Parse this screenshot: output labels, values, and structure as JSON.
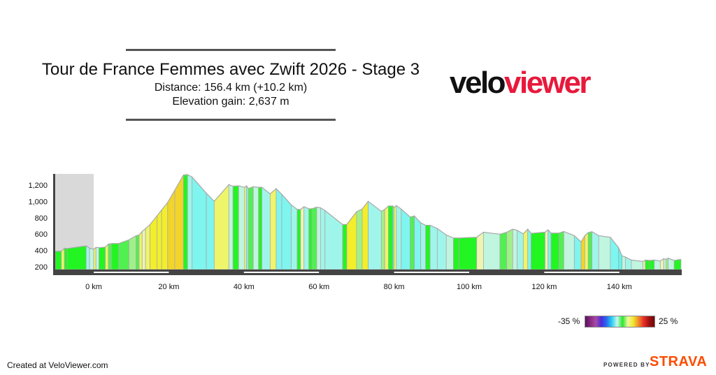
{
  "header": {
    "title": "Tour de France Femmes avec Zwift 2026 - Stage 3",
    "distance": "Distance: 156.4 km (+10.2 km)",
    "elevation_gain": "Elevation gain: 2,637 m"
  },
  "logo": {
    "part1": "velo",
    "part2": "viewer",
    "colors": {
      "velo": "#111111",
      "viewer": "#e8193c"
    }
  },
  "legend": {
    "min_label": "-35 %",
    "max_label": "25 %"
  },
  "footer": {
    "created": "Created at VeloViewer.com",
    "powered_by": "POWERED BY",
    "strava": "STRAVA",
    "strava_color": "#fc4c02"
  },
  "chart_data": {
    "type": "area",
    "title": "",
    "xlabel": "",
    "ylabel": "",
    "x_unit": "km",
    "xlim": [
      -10.2,
      156.4
    ],
    "ylim": [
      165,
      1340
    ],
    "neutral_zone": [
      -10.2,
      0
    ],
    "x_ticks": [
      0,
      20,
      40,
      60,
      80,
      100,
      120,
      140
    ],
    "x_tick_labels": [
      "0 km",
      "20 km",
      "40 km",
      "60 km",
      "80 km",
      "100 km",
      "120 km",
      "140 km"
    ],
    "y_ticks": [
      200,
      400,
      600,
      800,
      1000,
      1200
    ],
    "y_tick_labels": [
      "200",
      "400",
      "600",
      "800",
      "1,000",
      "1,200"
    ],
    "grid": false,
    "color_by": "gradient",
    "series": [
      {
        "x": [
          -10.2,
          -8.6,
          -7.8,
          -7,
          -2,
          -1.1,
          0,
          0.6,
          1.4,
          3.1,
          3.9,
          4.8,
          6.6,
          9.4,
          11.3,
          12.1,
          12.9,
          13.8,
          15,
          16.9,
          18.1,
          19.7,
          21.6,
          23.9,
          25,
          26.2,
          30,
          32.1,
          36,
          37.1,
          38.6,
          40.2,
          40.7,
          41.2,
          42.5,
          43.9,
          44.8,
          47,
          48.6,
          50.1,
          52.6,
          54.2,
          55.1,
          56,
          57.3,
          58.1,
          59.4,
          60.4,
          61.6,
          66.3,
          67.4,
          70,
          71.5,
          73.1,
          76.6,
          77.5,
          78.5,
          79.7,
          80,
          80.6,
          81.9,
          84.3,
          85.4,
          87.1,
          88.4,
          89.6,
          91.5,
          93.9,
          95.8,
          97.3,
          102,
          103.8,
          108.2,
          110,
          111.6,
          112.8,
          114.4,
          115.6,
          116.5,
          120.2,
          121,
          121.8,
          123.9,
          125.2,
          128,
          129.8,
          130.8,
          131.7,
          132.7,
          134.5,
          137.6,
          139.8,
          140.7,
          141.6,
          143.2,
          146.3,
          146.9,
          148.1,
          149.3,
          150.9,
          151.8,
          152.4,
          153,
          154.6,
          156.4
        ],
        "y": [
          390,
          390,
          427,
          424,
          456,
          427,
          413,
          438,
          433,
          441,
          476,
          484,
          484,
          530,
          580,
          589,
          632,
          666,
          717,
          825,
          896,
          987,
          1137,
          1322,
          1328,
          1299,
          1100,
          1001,
          1206,
          1186,
          1191,
          1172,
          1191,
          1157,
          1180,
          1172,
          1172,
          1092,
          1157,
          1086,
          959,
          902,
          902,
          936,
          910,
          910,
          930,
          922,
          888,
          717,
          717,
          873,
          907,
          1001,
          879,
          902,
          944,
          944,
          924,
          950,
          907,
          808,
          822,
          737,
          708,
          708,
          669,
          589,
          552,
          552,
          561,
          623,
          598,
          623,
          660,
          646,
          603,
          660,
          609,
          623,
          652,
          612,
          612,
          632,
          581,
          504,
          581,
          618,
          629,
          581,
          561,
          433,
          334,
          319,
          282,
          265,
          282,
          277,
          282,
          271,
          299,
          291,
          305,
          277,
          291
        ]
      }
    ]
  }
}
